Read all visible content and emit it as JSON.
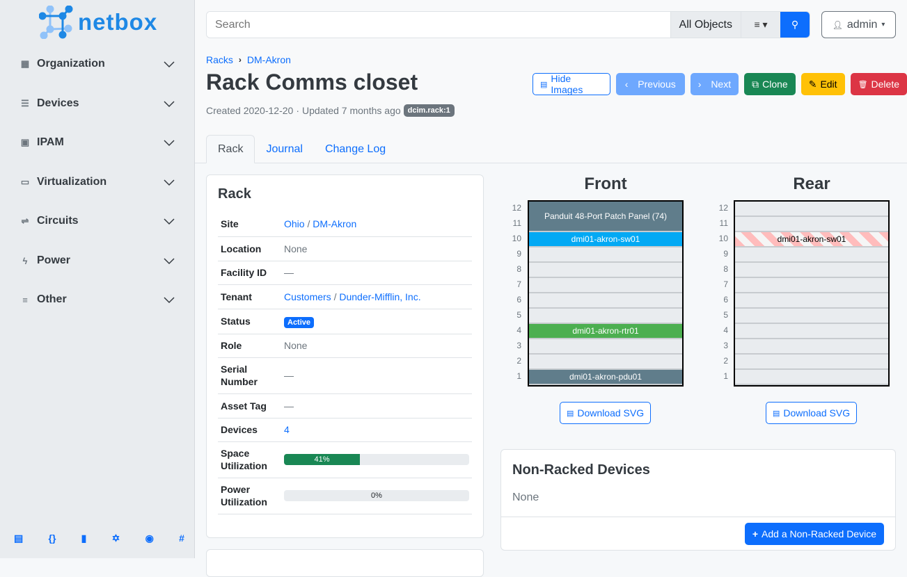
{
  "brand": {
    "name": "netbox"
  },
  "sidebar": {
    "items": [
      {
        "label": "Organization",
        "icon": "building-icon",
        "glyph": "▦"
      },
      {
        "label": "Devices",
        "icon": "server-icon",
        "glyph": "☰"
      },
      {
        "label": "IPAM",
        "icon": "ip-icon",
        "glyph": "▣"
      },
      {
        "label": "Virtualization",
        "icon": "monitor-icon",
        "glyph": "▭"
      },
      {
        "label": "Circuits",
        "icon": "circuit-icon",
        "glyph": "⇌"
      },
      {
        "label": "Power",
        "icon": "lightning-icon",
        "glyph": "ϟ"
      },
      {
        "label": "Other",
        "icon": "lines-icon",
        "glyph": "≡"
      }
    ],
    "footer_icons": [
      {
        "name": "docs-icon",
        "glyph": "▤"
      },
      {
        "name": "api-icon",
        "glyph": "{}"
      },
      {
        "name": "book-icon",
        "glyph": "▮"
      },
      {
        "name": "graphql-icon",
        "glyph": "✡"
      },
      {
        "name": "github-icon",
        "glyph": "◉"
      },
      {
        "name": "slack-icon",
        "glyph": "#"
      }
    ]
  },
  "search": {
    "placeholder": "Search",
    "scope": "All Objects"
  },
  "user": {
    "name": "admin"
  },
  "breadcrumb": [
    "Racks",
    "DM-Akron"
  ],
  "page": {
    "title": "Rack Comms closet",
    "created": "Created 2020-12-20",
    "updated": "Updated 7 months ago",
    "tag": "dcim.rack:1"
  },
  "buttons": {
    "hide_images": "Hide Images",
    "previous": "Previous",
    "next": "Next",
    "clone": "Clone",
    "edit": "Edit",
    "delete": "Delete"
  },
  "tabs": [
    "Rack",
    "Journal",
    "Change Log"
  ],
  "rack_card": {
    "title": "Rack",
    "rows": [
      {
        "key": "Site",
        "links": [
          "Ohio",
          "DM-Akron"
        ]
      },
      {
        "key": "Location",
        "value": "None"
      },
      {
        "key": "Facility ID",
        "value": "—"
      },
      {
        "key": "Tenant",
        "links": [
          "Customers",
          "Dunder-Mifflin, Inc."
        ]
      },
      {
        "key": "Status",
        "badge": "Active"
      },
      {
        "key": "Role",
        "value": "None"
      },
      {
        "key": "Serial Number",
        "value": "—"
      },
      {
        "key": "Asset Tag",
        "value": "—"
      },
      {
        "key": "Devices",
        "link": "4"
      },
      {
        "key": "Space Utilization",
        "progress": 41,
        "progress_label": "41%"
      },
      {
        "key": "Power Utilization",
        "progress": 0,
        "progress_label": "0%"
      }
    ]
  },
  "elevations": {
    "front": {
      "title": "Front",
      "units": [
        12,
        11,
        10,
        9,
        8,
        7,
        6,
        5,
        4,
        3,
        2,
        1
      ],
      "devices": [
        {
          "name": "Panduit 48-Port Patch Panel (74)",
          "top": 12,
          "height": 2,
          "color": "#607d8b",
          "text": "#ffffff"
        },
        {
          "name": "dmi01-akron-sw01",
          "top": 10,
          "height": 1,
          "color": "#03a9f4",
          "text": "#ffffff"
        },
        {
          "name": "dmi01-akron-rtr01",
          "top": 4,
          "height": 1,
          "color": "#4caf50",
          "text": "#ffffff"
        },
        {
          "name": "dmi01-akron-pdu01",
          "top": 1,
          "height": 1,
          "color": "#607d8b",
          "text": "#ffffff"
        }
      ]
    },
    "rear": {
      "title": "Rear",
      "units": [
        12,
        11,
        10,
        9,
        8,
        7,
        6,
        5,
        4,
        3,
        2,
        1
      ],
      "devices": [
        {
          "name": "dmi01-akron-sw01",
          "top": 10,
          "height": 1,
          "color": "striped",
          "text": "#000000"
        }
      ]
    },
    "download_label": "Download SVG"
  },
  "non_racked": {
    "title": "Non-Racked Devices",
    "value": "None",
    "add_label": "Add a Non-Racked Device"
  }
}
